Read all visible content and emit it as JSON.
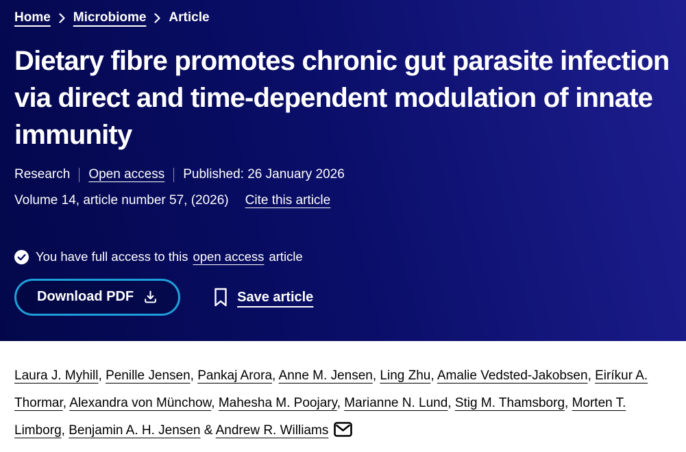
{
  "colors": {
    "banner_gradient_left": "#03074a",
    "banner_gradient_mid": "#0a0e68",
    "banner_gradient_right": "#1e1e90",
    "button_border": "#1f9fd9",
    "banner_text": "#ffffff",
    "author_text": "#000000",
    "section_background": "#ffffff"
  },
  "breadcrumb": {
    "items": [
      {
        "label": "Home",
        "link": true
      },
      {
        "label": "Microbiome",
        "link": true
      },
      {
        "label": "Article",
        "link": false
      }
    ]
  },
  "article": {
    "title": "Dietary fibre promotes chronic gut parasite infection via direct and time-dependent modulation of innate immunity",
    "type": "Research",
    "open_access_label": "Open access",
    "published": "Published: 26 January 2026",
    "volume_line": "Volume 14, article number 57, (2026)",
    "cite_label": "Cite this article"
  },
  "access": {
    "prefix": "You have full access to this",
    "link_text": "open access",
    "suffix": "article"
  },
  "actions": {
    "download_label": "Download PDF",
    "save_label": "Save article"
  },
  "authors": {
    "names": [
      "Laura J. Myhill",
      "Penille Jensen",
      "Pankaj Arora",
      "Anne M. Jensen",
      "Ling Zhu",
      "Amalie Vedsted-Jakobsen",
      "Eiríkur A. Thormar",
      "Alexandra von Münchow",
      "Mahesha M. Poojary",
      "Marianne N. Lund",
      "Stig M. Thamsborg",
      "Morten T. Limborg",
      "Benjamin A. H. Jensen",
      "Andrew R. Williams"
    ],
    "corresponding": "Andrew R. Williams"
  }
}
